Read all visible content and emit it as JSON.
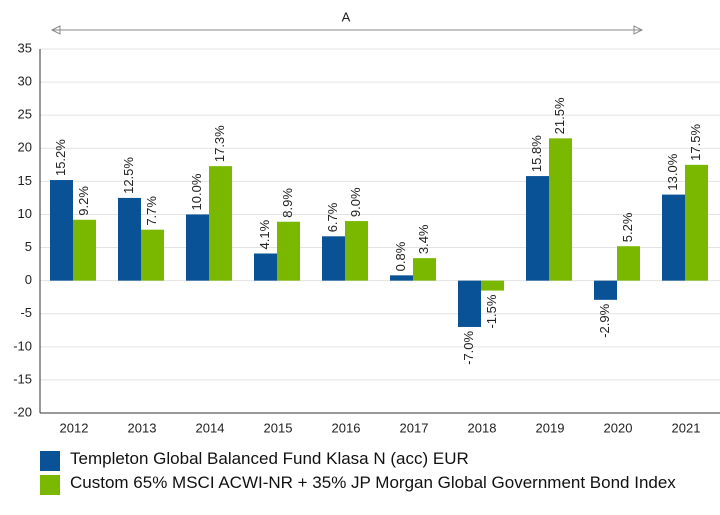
{
  "chart_data": {
    "type": "bar",
    "annotation": "A",
    "categories": [
      "2012",
      "2013",
      "2014",
      "2015",
      "2016",
      "2017",
      "2018",
      "2019",
      "2020",
      "2021"
    ],
    "series": [
      {
        "name": "Templeton Global Balanced Fund Klasa N (acc) EUR",
        "color": "#0a5296",
        "values": [
          15.2,
          12.5,
          10.0,
          4.1,
          6.7,
          0.8,
          -7.0,
          15.8,
          -2.9,
          13.0
        ],
        "value_labels": [
          "15.2%",
          "12.5%",
          "10.0%",
          "4.1%",
          "6.7%",
          "0.8%",
          "-7.0%",
          "15.8%",
          "-2.9%",
          "13.0%"
        ]
      },
      {
        "name": "Custom 65% MSCI ACWI-NR + 35% JP Morgan Global Government Bond Index",
        "color": "#7ab800",
        "values": [
          9.2,
          7.7,
          17.3,
          8.9,
          9.0,
          3.4,
          -1.5,
          21.5,
          5.2,
          17.5
        ],
        "value_labels": [
          "9.2%",
          "7.7%",
          "17.3%",
          "8.9%",
          "9.0%",
          "3.4%",
          "-1.5%",
          "21.5%",
          "5.2%",
          "17.5%"
        ]
      }
    ],
    "ylim": [
      -20,
      35
    ],
    "yticks": [
      -20,
      -15,
      -10,
      -5,
      0,
      5,
      10,
      15,
      20,
      25,
      30,
      35
    ],
    "grid": true
  }
}
